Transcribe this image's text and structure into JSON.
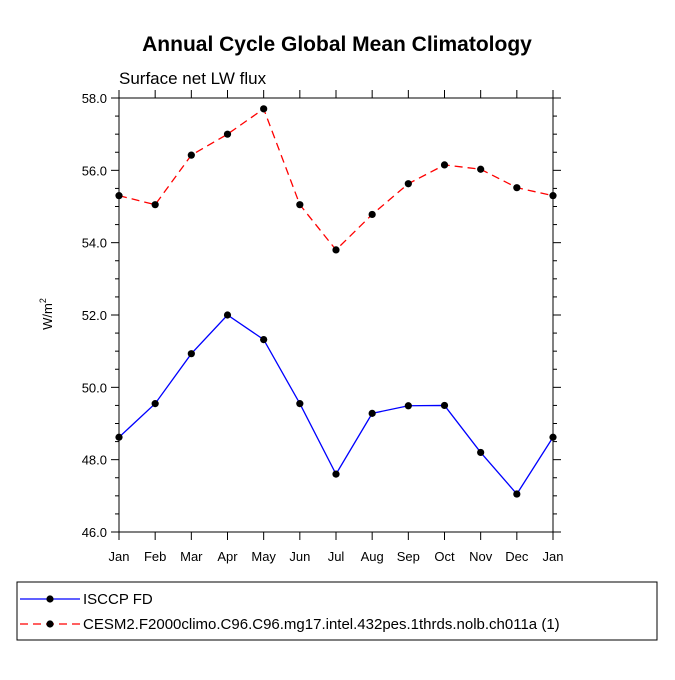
{
  "chart_data": {
    "type": "line",
    "title": "Annual Cycle Global Mean Climatology",
    "subtitle": "Surface net LW flux",
    "ylabel_main": "W/m",
    "ylabel_sup": "2",
    "xlabel": "",
    "categories": [
      "Jan",
      "Feb",
      "Mar",
      "Apr",
      "May",
      "Jun",
      "Jul",
      "Aug",
      "Sep",
      "Oct",
      "Nov",
      "Dec",
      "Jan"
    ],
    "ylim": [
      46.0,
      58.0
    ],
    "yticks": [
      46.0,
      48.0,
      50.0,
      52.0,
      54.0,
      56.0,
      58.0
    ],
    "ytick_labels": [
      "46.0",
      "48.0",
      "50.0",
      "52.0",
      "54.0",
      "56.0",
      "58.0"
    ],
    "legend_position": "bottom",
    "series": [
      {
        "name": "ISCCP FD",
        "color": "#0000ff",
        "dash": "solid",
        "values": [
          48.62,
          49.55,
          50.93,
          52.0,
          51.32,
          49.55,
          47.6,
          49.28,
          49.49,
          49.5,
          48.2,
          47.05,
          48.62
        ]
      },
      {
        "name": "CESM2.F2000climo.C96.C96.mg17.intel.432pes.1thrds.nolb.ch011a (1)",
        "color": "#ff0000",
        "dash": "dashed",
        "values": [
          55.3,
          55.05,
          56.42,
          57.0,
          57.7,
          55.05,
          53.8,
          54.78,
          55.63,
          56.15,
          56.03,
          55.52,
          55.3
        ]
      }
    ]
  }
}
